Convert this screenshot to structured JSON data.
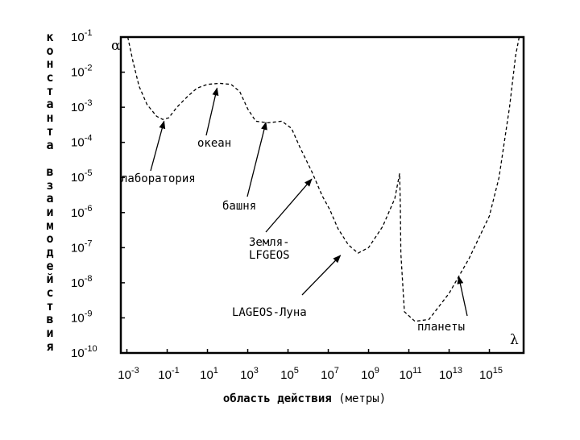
{
  "chart_data": {
    "type": "line",
    "title": "",
    "xlabel_bold": "область действия",
    "xlabel_rest": "(метры)",
    "ylabel": "константа взаимодействия",
    "x_scale": "log",
    "y_scale": "log",
    "xlim": [
      0.0005,
      5e+16
    ],
    "ylim": [
      1e-10,
      0.1
    ],
    "grid": false,
    "x_ticks": [
      {
        "base": "10",
        "exp": "-3",
        "value": 0.001
      },
      {
        "base": "10",
        "exp": "-1",
        "value": 0.1
      },
      {
        "base": "10",
        "exp": "1",
        "value": 10
      },
      {
        "base": "10",
        "exp": "3",
        "value": 1000
      },
      {
        "base": "10",
        "exp": "5",
        "value": 100000
      },
      {
        "base": "10",
        "exp": "7",
        "value": 10000000
      },
      {
        "base": "10",
        "exp": "9",
        "value": 1000000000
      },
      {
        "base": "10",
        "exp": "11",
        "value": 100000000000
      },
      {
        "base": "10",
        "exp": "13",
        "value": 10000000000000
      },
      {
        "base": "10",
        "exp": "15",
        "value": 1000000000000000
      }
    ],
    "y_ticks": [
      {
        "base": "10",
        "exp": "-1",
        "value": 0.1
      },
      {
        "base": "10",
        "exp": "-2",
        "value": 0.01
      },
      {
        "base": "10",
        "exp": "-3",
        "value": 0.001
      },
      {
        "base": "10",
        "exp": "-4",
        "value": 0.0001
      },
      {
        "base": "10",
        "exp": "-5",
        "value": 1e-05
      },
      {
        "base": "10",
        "exp": "-6",
        "value": 1e-06
      },
      {
        "base": "10",
        "exp": "-7",
        "value": 1e-07
      },
      {
        "base": "10",
        "exp": "-8",
        "value": 1e-08
      },
      {
        "base": "10",
        "exp": "-9",
        "value": 1e-09
      },
      {
        "base": "10",
        "exp": "-10",
        "value": 1e-10
      }
    ],
    "corner_labels": {
      "alpha": "α",
      "lambda": "λ"
    },
    "series": [
      {
        "line_style": "dashed",
        "color": "#000000",
        "points": [
          [
            0.0011,
            0.1
          ],
          [
            0.002,
            0.02
          ],
          [
            0.004,
            0.004
          ],
          [
            0.01,
            0.0012
          ],
          [
            0.03,
            0.00055
          ],
          [
            0.06,
            0.00045
          ],
          [
            0.12,
            0.0005
          ],
          [
            0.3,
            0.001
          ],
          [
            1,
            0.002
          ],
          [
            3,
            0.0035
          ],
          [
            10,
            0.0045
          ],
          [
            40,
            0.0048
          ],
          [
            150,
            0.0045
          ],
          [
            400,
            0.0028
          ],
          [
            1000,
            0.0009
          ],
          [
            2500,
            0.0004
          ],
          [
            10000,
            0.00036
          ],
          [
            50000,
            0.0004
          ],
          [
            150000,
            0.00025
          ],
          [
            400000,
            7e-05
          ],
          [
            1500000,
            1.5e-05
          ],
          [
            5000000,
            3e-06
          ],
          [
            12000000,
            1.2e-06
          ],
          [
            30000000,
            3.5e-07
          ],
          [
            100000000,
            1.2e-07
          ],
          [
            300000000,
            7e-08
          ],
          [
            1000000000,
            1e-07
          ],
          [
            5000000000,
            4e-07
          ],
          [
            20000000000,
            2.5e-06
          ],
          [
            35000000000,
            1.3e-05
          ],
          [
            38000000000,
            1.5e-06
          ],
          [
            40000000000,
            7e-08
          ],
          [
            60000000000,
            1.5e-09
          ],
          [
            200000000000,
            8e-10
          ],
          [
            1000000000000,
            9e-10
          ],
          [
            10000000000000,
            5e-09
          ],
          [
            100000000000000,
            5e-08
          ],
          [
            1000000000000000,
            8e-07
          ],
          [
            3000000000000000,
            1e-05
          ],
          [
            10000000000000000,
            0.001
          ],
          [
            20000000000000000,
            0.03
          ],
          [
            30000000000000000,
            0.1
          ]
        ]
      }
    ],
    "annotations": [
      {
        "lines": [
          "лаборатория"
        ],
        "arrow_to": [
          0.07,
          0.0004
        ]
      },
      {
        "lines": [
          "океан"
        ],
        "arrow_to": [
          30,
          0.0035
        ]
      },
      {
        "lines": [
          "башня"
        ],
        "arrow_to": [
          8000,
          0.00037
        ]
      },
      {
        "lines": [
          "Земля-",
          "LFGEOS"
        ],
        "arrow_to": [
          1500000,
          9e-06
        ]
      },
      {
        "lines": [
          "LAGEOS-Луна"
        ],
        "arrow_to": [
          40000000,
          6e-08
        ]
      },
      {
        "lines": [
          "планеты"
        ],
        "arrow_to": [
          30000000000000,
          1.5e-08
        ]
      }
    ]
  }
}
